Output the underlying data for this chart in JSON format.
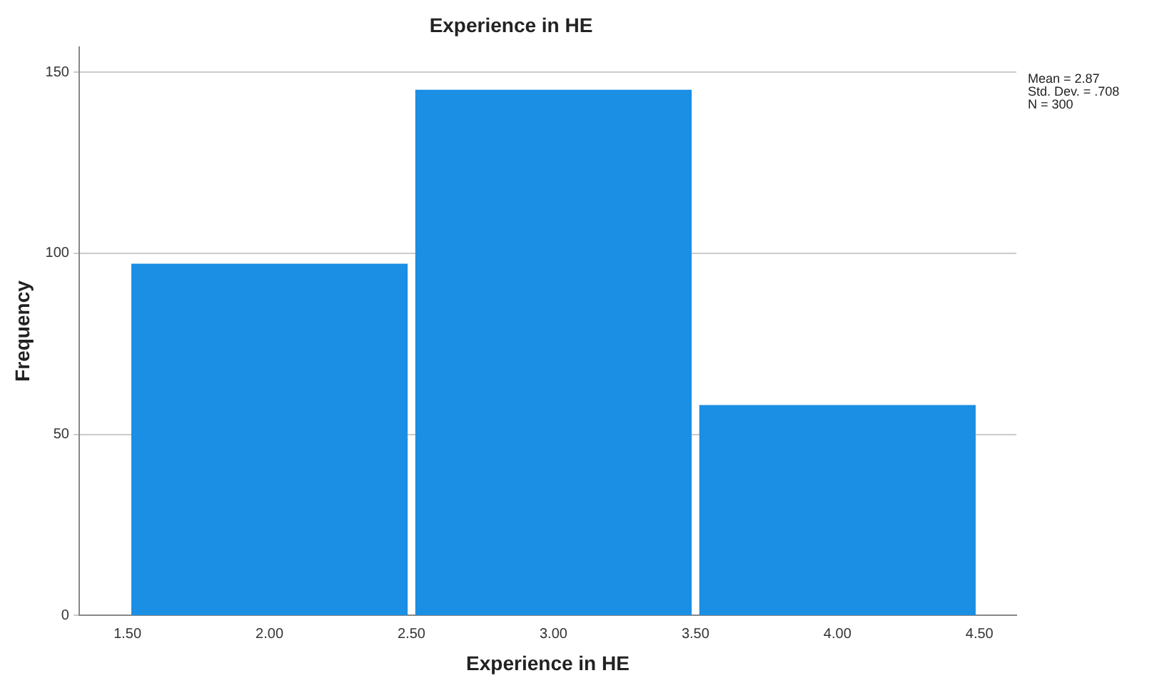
{
  "chart_data": {
    "type": "histogram",
    "title": "Experience in HE",
    "xlabel": "Experience in HE",
    "ylabel": "Frequency",
    "bins": [
      1.5,
      2.5,
      3.5,
      4.5
    ],
    "values": [
      97,
      145,
      58
    ],
    "color": "#1a8fe3",
    "xlim": [
      1.33,
      4.63
    ],
    "xticks": [
      {
        "value": 1.5,
        "label": "1.50"
      },
      {
        "value": 2,
        "label": "2.00"
      },
      {
        "value": 2.5,
        "label": "2.50"
      },
      {
        "value": 3,
        "label": "3.00"
      },
      {
        "value": 3.5,
        "label": "3.50"
      },
      {
        "value": 4,
        "label": "4.00"
      },
      {
        "value": 4.5,
        "label": "4.50"
      }
    ],
    "ylim": [
      0,
      157
    ],
    "yticks": [
      0,
      50,
      100,
      150
    ],
    "grid": "y",
    "legend": false,
    "annotations": [
      "Mean = 2.87",
      "Std. Dev. = .708",
      "N = 300"
    ]
  }
}
